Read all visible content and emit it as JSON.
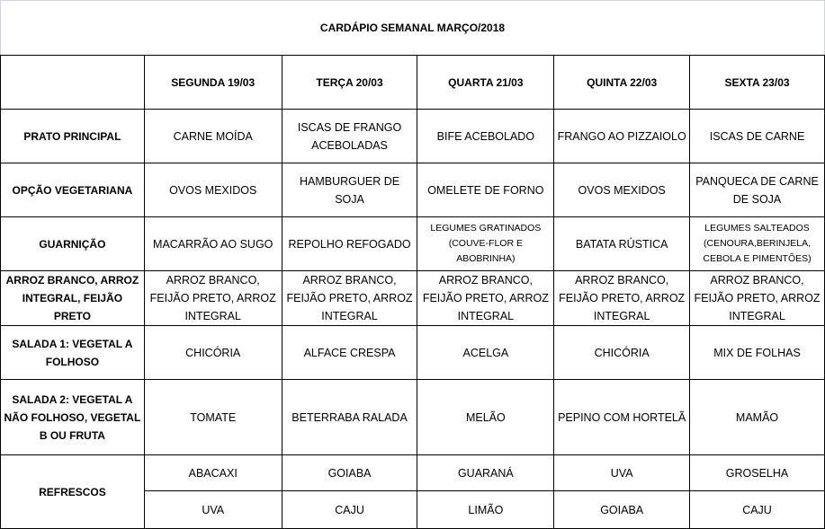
{
  "title": "CARDÁPIO SEMANAL MARÇO/2018",
  "days": [
    "SEGUNDA  19/03",
    "TERÇA 20/03",
    "QUARTA 21/03",
    "QUINTA 22/03",
    "SEXTA 23/03"
  ],
  "rows": [
    {
      "label": "PRATO PRINCIPAL",
      "cells": [
        "CARNE MOÍDA",
        "ISCAS DE FRANGO ACEBOLADAS",
        "BIFE ACEBOLADO",
        "FRANGO AO PIZZAIOLO",
        "ISCAS DE CARNE"
      ]
    },
    {
      "label": "OPÇÃO VEGETARIANA",
      "cells": [
        "OVOS MEXIDOS",
        "HAMBURGUER DE SOJA",
        "OMELETE DE FORNO",
        "OVOS MEXIDOS",
        "PANQUECA DE CARNE DE SOJA"
      ]
    },
    {
      "label": "GUARNIÇÃO",
      "cells": [
        "MACARRÃO AO SUGO",
        "REPOLHO REFOGADO",
        "LEGUMES GRATINADOS (COUVE-FLOR E ABOBRINHA)",
        "BATATA RÚSTICA",
        "LEGUMES SALTEADOS (CENOURA,BERINJELA, CEBOLA E PIMENTÕES)"
      ]
    },
    {
      "label": "ARROZ BRANCO, ARROZ INTEGRAL, FEIJÃO PRETO",
      "cells": [
        "ARROZ BRANCO, FEIJÃO PRETO, ARROZ INTEGRAL",
        "ARROZ BRANCO, FEIJÃO PRETO, ARROZ INTEGRAL",
        "ARROZ BRANCO, FEIJÃO PRETO, ARROZ INTEGRAL",
        "ARROZ BRANCO, FEIJÃO PRETO, ARROZ INTEGRAL",
        "ARROZ BRANCO, FEIJÃO PRETO, ARROZ INTEGRAL"
      ]
    },
    {
      "label": "SALADA 1: VEGETAL A FOLHOSO",
      "cells": [
        "CHICÓRIA",
        "ALFACE CRESPA",
        "ACELGA",
        "CHICÓRIA",
        "MIX DE FOLHAS"
      ]
    },
    {
      "label": "SALADA 2: VEGETAL A NÃO FOLHOSO, VEGETAL B OU FRUTA",
      "cells": [
        "TOMATE",
        "BETERRABA RALADA",
        "MELÃO",
        "PEPINO COM HORTELÃ",
        "MAMÃO"
      ]
    }
  ],
  "refrescos": {
    "label": "REFRESCOS",
    "row1": [
      "ABACAXI",
      "GOIABA",
      "GUARANÁ",
      "UVA",
      "GROSELHA"
    ],
    "row2": [
      "UVA",
      "CAJU",
      "LIMÃO",
      "GOIABA",
      "CAJU"
    ]
  }
}
